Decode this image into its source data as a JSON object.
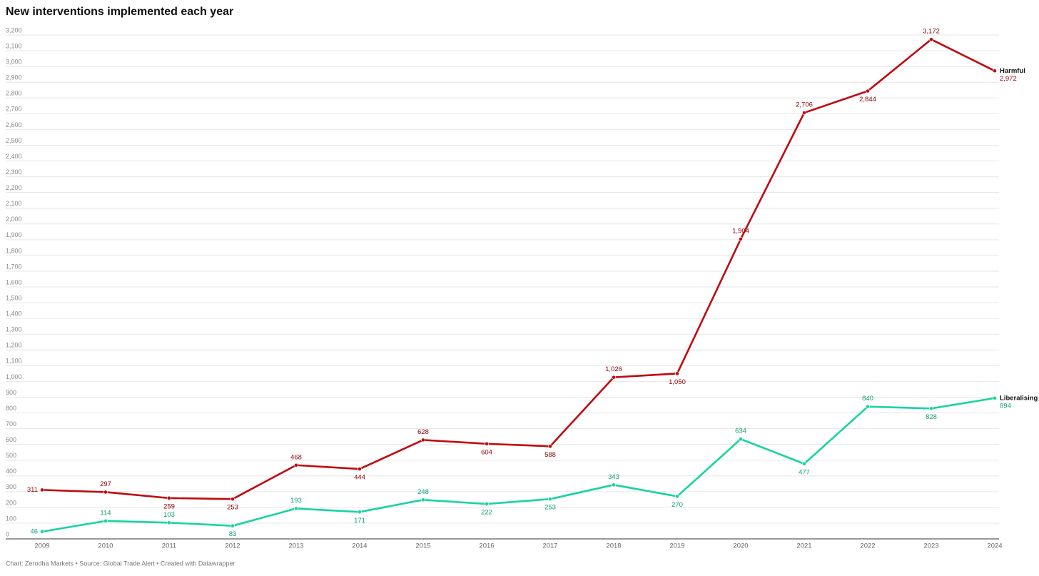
{
  "chart_data": {
    "type": "line",
    "title": "New interventions implemented each year",
    "caption": "Chart: Zerodha Markets • Source: Global Trade Alert • Created with Datawrapper",
    "categories": [
      "2009",
      "2010",
      "2011",
      "2012",
      "2013",
      "2014",
      "2015",
      "2016",
      "2017",
      "2018",
      "2019",
      "2020",
      "2021",
      "2022",
      "2023",
      "2024"
    ],
    "series": [
      {
        "name": "Harmful",
        "color": "#c0090f",
        "values": [
          311,
          297,
          259,
          253,
          468,
          444,
          628,
          604,
          588,
          1026,
          1050,
          1904,
          2706,
          2844,
          3172,
          2972
        ],
        "value_labels": [
          "311",
          "297",
          "259",
          "253",
          "468",
          "444",
          "628",
          "604",
          "588",
          "1,026",
          "1,050",
          "1,904",
          "2,706",
          "2,844",
          "3,172",
          "2,972"
        ]
      },
      {
        "name": "Liberalising",
        "color": "#17d4a0",
        "values": [
          46,
          114,
          103,
          83,
          193,
          171,
          248,
          222,
          253,
          343,
          270,
          634,
          477,
          840,
          828,
          894
        ]
      }
    ],
    "ylim": [
      0,
      3200
    ],
    "yticks": [
      0,
      100,
      200,
      300,
      400,
      500,
      600,
      700,
      800,
      900,
      {
        "value": 1000,
        "label": "1,000"
      },
      {
        "value": 1100,
        "label": "1,100"
      },
      {
        "value": 1200,
        "label": "1,200"
      },
      {
        "value": 1300,
        "label": "1,300"
      },
      {
        "value": 1400,
        "label": "1,400"
      },
      {
        "value": 1500,
        "label": "1,500"
      },
      {
        "value": 1600,
        "label": "1,600"
      },
      {
        "value": 1700,
        "label": "1,700"
      },
      {
        "value": 1800,
        "label": "1,800"
      },
      {
        "value": 1900,
        "label": "1,900"
      },
      {
        "value": 2000,
        "label": "2,000"
      },
      {
        "value": 2100,
        "label": "2,100"
      },
      {
        "value": 2200,
        "label": "2,200"
      },
      {
        "value": 2300,
        "label": "2,300"
      },
      {
        "value": 2400,
        "label": "2,400"
      },
      {
        "value": 2500,
        "label": "2,500"
      },
      {
        "value": 2600,
        "label": "2,600"
      },
      {
        "value": 2700,
        "label": "2,700"
      },
      {
        "value": 2800,
        "label": "2,800"
      },
      {
        "value": 2900,
        "label": "2,900"
      },
      {
        "value": 3000,
        "label": "3,000"
      },
      {
        "value": 3100,
        "label": "3,100"
      },
      {
        "value": 3200,
        "label": "3,200"
      }
    ],
    "grid": true
  }
}
